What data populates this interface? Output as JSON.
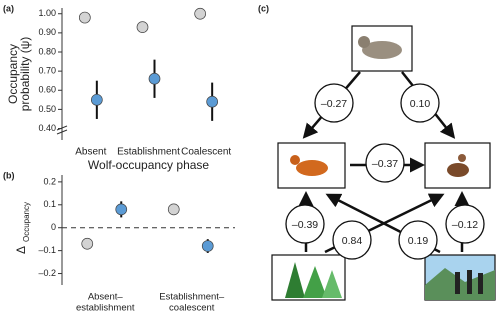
{
  "chart_data": [
    {
      "type": "dotplot",
      "panel_label": "(a)",
      "xlabel": "Wolf-occupancy phase",
      "ylabel": [
        "Occupancy",
        "probability (ψ)"
      ],
      "categories": [
        "Absent",
        "Establishment",
        "Coalescent"
      ],
      "series": [
        {
          "color": "#d3d3d3",
          "values": [
            0.98,
            0.93,
            1.0
          ]
        },
        {
          "color": "#5b9bd5",
          "values": [
            0.55,
            0.66,
            0.54
          ],
          "errors": [
            0.1,
            0.1,
            0.1
          ]
        }
      ],
      "ylim": [
        0.34,
        1.03
      ],
      "yticks": [
        {
          "value": 0.4,
          "label": "0.40"
        },
        {
          "value": 0.5,
          "label": "0.50"
        },
        {
          "value": 0.6,
          "label": "0.60"
        },
        {
          "value": 0.7,
          "label": "0.70"
        },
        {
          "value": 0.8,
          "label": "0.80"
        },
        {
          "value": 0.9,
          "label": "0.90"
        },
        {
          "value": 1.0,
          "label": "1.00"
        }
      ],
      "axis_break": true
    },
    {
      "type": "dotplot",
      "panel_label": "(b)",
      "ylabel": "Δ",
      "ylabel_sub": "Occupancy",
      "categories": [
        [
          "Absent–",
          "establishment"
        ],
        [
          "Establishment–",
          "coalescent"
        ]
      ],
      "series": [
        {
          "color": "#d3d3d3",
          "values": [
            -0.07,
            0.08
          ]
        },
        {
          "color": "#5b9bd5",
          "values": [
            0.08,
            -0.08
          ],
          "errors": [
            0.035,
            0.03
          ]
        }
      ],
      "ylim": [
        -0.25,
        0.23
      ],
      "yticks": [
        {
          "value": -0.2,
          "label": "–0.2"
        },
        {
          "value": -0.1,
          "label": "–0.1"
        },
        0,
        0.1,
        0.2
      ],
      "reference_line": 0
    }
  ],
  "diagram": {
    "panel_label": "(c)",
    "edges": [
      {
        "label": "–0.27"
      },
      {
        "label": "0.10"
      },
      {
        "label": "–0.37"
      },
      {
        "label": "–0.39"
      },
      {
        "label": "0.84"
      },
      {
        "label": "0.19"
      },
      {
        "label": "–0.12"
      }
    ]
  }
}
